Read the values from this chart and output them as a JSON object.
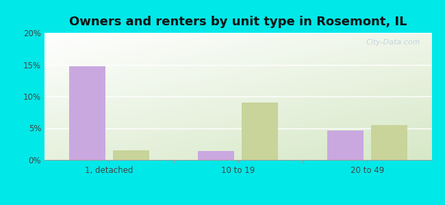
{
  "title": "Owners and renters by unit type in Rosemont, IL",
  "categories": [
    "1, detached",
    "10 to 19",
    "20 to 49"
  ],
  "owner_values": [
    14.7,
    1.4,
    4.6
  ],
  "renter_values": [
    1.5,
    9.0,
    5.5
  ],
  "owner_color": "#c9a8e0",
  "renter_color": "#c8d49a",
  "ylim": [
    0,
    20
  ],
  "yticks": [
    0,
    5,
    10,
    15,
    20
  ],
  "ytick_labels": [
    "0%",
    "5%",
    "10%",
    "15%",
    "20%"
  ],
  "outer_background": "#00e8e8",
  "title_fontsize": 13,
  "bar_width": 0.28,
  "watermark": "City-Data.com"
}
